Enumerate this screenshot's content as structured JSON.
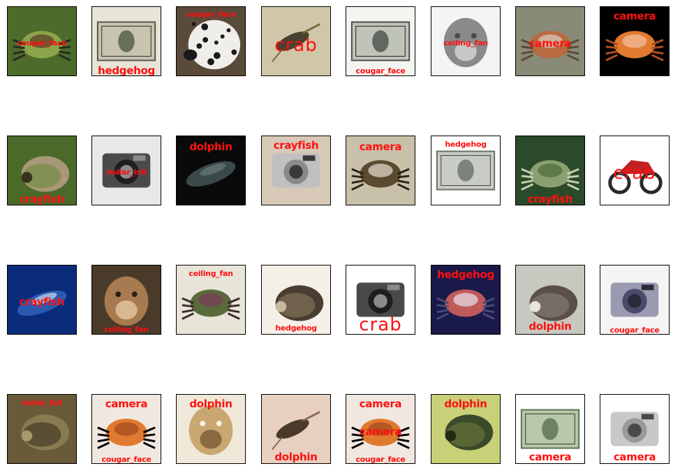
{
  "tiles": [
    {
      "label": "cougar_face",
      "subject": "crab",
      "colors": [
        "#4d6b2a",
        "#8aa54a",
        "#5a3a2a",
        "#2a2a1e"
      ]
    },
    {
      "label": "hedgehog",
      "subject": "dollar_bill",
      "colors": [
        "#e8e4d8",
        "#4f5a48",
        "#c8c4b0",
        "#2e2e2a"
      ]
    },
    {
      "label": "cougar_face",
      "subject": "dalmatian",
      "colors": [
        "#5a4a3a",
        "#f0eeea",
        "#1a1a1a",
        "#8a7a6a"
      ]
    },
    {
      "label": "crab",
      "subject": "crayfish",
      "colors": [
        "#cfc7a8",
        "#4a4030",
        "#e6e0c8",
        "#7a6a40"
      ]
    },
    {
      "label": "cougar_face",
      "subject": "dollar_bill",
      "colors": [
        "#f4f4f0",
        "#4a5048",
        "#c0c4b8",
        "#1e1e1e"
      ]
    },
    {
      "label": "ceiling_fan",
      "subject": "cougar_face",
      "colors": [
        "#f4f4f4",
        "#8a8a8a",
        "#c8c8c8",
        "#4a4a4a"
      ]
    },
    {
      "label": "camera",
      "subject": "crab",
      "colors": [
        "#8a8a78",
        "#b86a40",
        "#d8d0c0",
        "#5a4a38"
      ]
    },
    {
      "label": "camera",
      "subject": "crab",
      "colors": [
        "#000000",
        "#e07a30",
        "#f4c0a0",
        "#b0501e"
      ]
    },
    {
      "label": "crayfish",
      "subject": "hedgehog",
      "colors": [
        "#4a6a2a",
        "#a89878",
        "#6a8a3a",
        "#3a3020"
      ]
    },
    {
      "label": "dollar_bill",
      "subject": "camera",
      "colors": [
        "#e8e8e8",
        "#1e1e1e",
        "#4a4a4a",
        "#8a8a8a"
      ]
    },
    {
      "label": "dolphin",
      "subject": "dolphin",
      "colors": [
        "#0a0a0a",
        "#3a4a4a",
        "#6a7a78",
        "#1e2a2a"
      ]
    },
    {
      "label": "crayfish",
      "subject": "camera",
      "colors": [
        "#d8c8b8",
        "#8a8a88",
        "#c0c0c0",
        "#3a3a3a"
      ]
    },
    {
      "label": "camera",
      "subject": "crab",
      "colors": [
        "#c8c0a8",
        "#5a4a30",
        "#e8e0d0",
        "#2a2418"
      ]
    },
    {
      "label": "hedgehog",
      "subject": "dollar_bill",
      "colors": [
        "#ffffff",
        "#6a7068",
        "#c8ccc4",
        "#3a3e38"
      ]
    },
    {
      "label": "crayfish",
      "subject": "crab",
      "colors": [
        "#2a4a2a",
        "#8aa070",
        "#4a6a3a",
        "#c8d0b0"
      ]
    },
    {
      "label": "crab",
      "subject": "motorbike",
      "colors": [
        "#ffffff",
        "#c02020",
        "#2a2a2a",
        "#8a8a8a"
      ]
    },
    {
      "label": "crayfish",
      "subject": "dolphin",
      "colors": [
        "#0a2a7a",
        "#2a5ab0",
        "#c8d8f0",
        "#061a50"
      ]
    },
    {
      "label": "ceiling_fan",
      "subject": "cougar_face",
      "colors": [
        "#4a3a2a",
        "#a87a50",
        "#d8b890",
        "#2a1e14"
      ]
    },
    {
      "label": "ceiling_fan",
      "subject": "crab",
      "colors": [
        "#e8e4d8",
        "#5a6a3a",
        "#7a3a5a",
        "#3a2a2a"
      ]
    },
    {
      "label": "hedgehog",
      "subject": "hedgehog",
      "colors": [
        "#f4f0e8",
        "#4a3e30",
        "#8a7a60",
        "#c8b8a0"
      ]
    },
    {
      "label": "crab",
      "subject": "camera",
      "colors": [
        "#ffffff",
        "#1e1e1e",
        "#4a4a4a",
        "#8a8a8a"
      ]
    },
    {
      "label": "hedgehog",
      "subject": "crab",
      "colors": [
        "#1a1a4a",
        "#c05a5a",
        "#e8e0f0",
        "#4a4a7a"
      ]
    },
    {
      "label": "dolphin",
      "subject": "hedgehog",
      "colors": [
        "#c8c8c0",
        "#5a5048",
        "#8a8078",
        "#e8e4dc"
      ]
    },
    {
      "label": "cougar_face",
      "subject": "camera",
      "colors": [
        "#f4f4f4",
        "#4a4a6a",
        "#9a9ab0",
        "#2a2a3a"
      ]
    },
    {
      "label": "dollar_bill",
      "subject": "hedgehog",
      "colors": [
        "#6a5a3a",
        "#8a7a50",
        "#3a3020",
        "#a89870"
      ]
    },
    {
      "label": "camera",
      "subject": "crab",
      "colors": [
        "#f0e8e0",
        "#e07a30",
        "#a04a1e",
        "#000000"
      ]
    },
    {
      "label": "dolphin",
      "subject": "cougar_face",
      "colors": [
        "#f0e8d8",
        "#c8a870",
        "#8a6a40",
        "#f8f4ec"
      ]
    },
    {
      "label": "dolphin",
      "subject": "crayfish",
      "colors": [
        "#e8d0c0",
        "#4a3a2a",
        "#d8b8a0",
        "#8a6a50"
      ]
    },
    {
      "label": "camera",
      "subject": "crab",
      "colors": [
        "#f0e8e0",
        "#e07a30",
        "#a04a1e",
        "#000000"
      ]
    },
    {
      "label": "dolphin",
      "subject": "hedgehog",
      "colors": [
        "#c8d078",
        "#3a4a2a",
        "#6a7a3a",
        "#1e2a14"
      ]
    },
    {
      "label": "camera",
      "subject": "dollar_bill",
      "colors": [
        "#ffffff",
        "#5a7050",
        "#b8c8a8",
        "#2a3a28"
      ]
    },
    {
      "label": "camera",
      "subject": "camera",
      "colors": [
        "#ffffff",
        "#9a9a9a",
        "#c8c8c8",
        "#4a4a4a"
      ]
    }
  ]
}
